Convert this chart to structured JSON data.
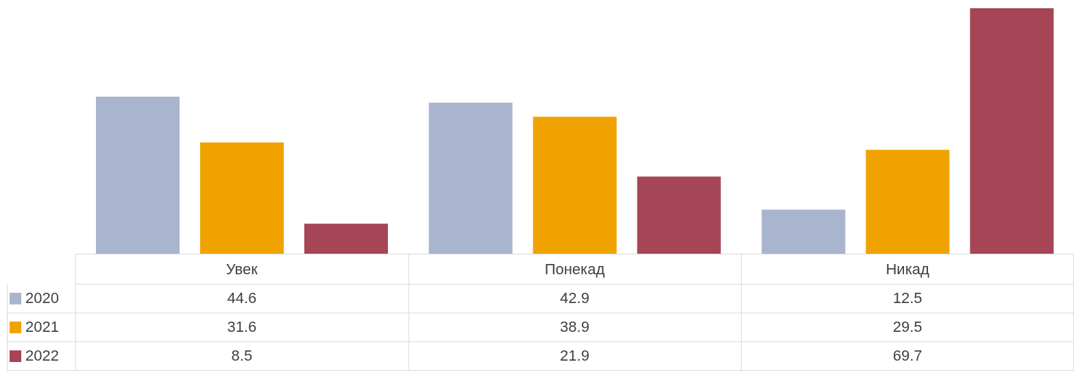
{
  "chart_data": {
    "type": "bar",
    "categories": [
      "Увек",
      "Понекад",
      "Никад"
    ],
    "series": [
      {
        "name": "2020",
        "color": "#a9b4ce",
        "values": [
          44.6,
          42.9,
          12.5
        ]
      },
      {
        "name": "2021",
        "color": "#f0a300",
        "values": [
          31.6,
          38.9,
          29.5
        ]
      },
      {
        "name": "2022",
        "color": "#a64555",
        "values": [
          8.5,
          21.9,
          69.7
        ]
      }
    ],
    "data_labels": true,
    "legend": "bottom left",
    "grid": false
  }
}
